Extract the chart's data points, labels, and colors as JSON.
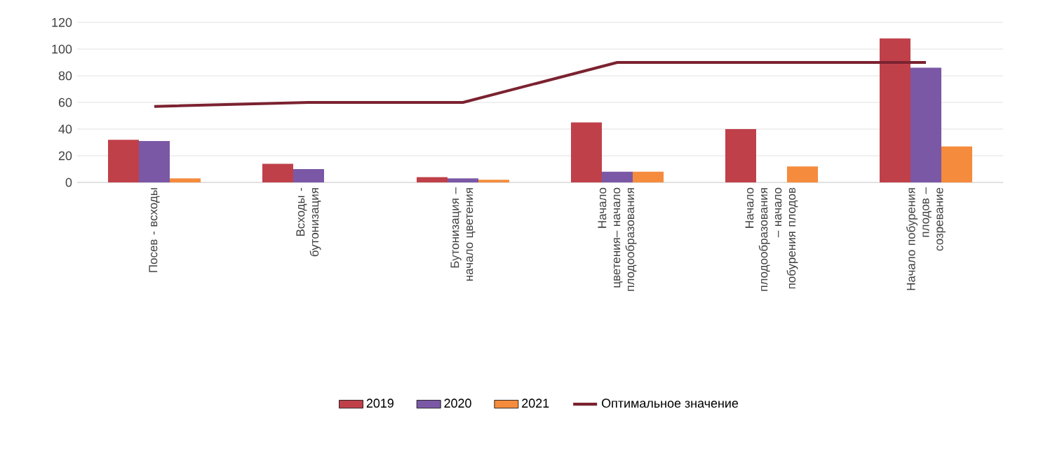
{
  "chart_data": {
    "type": "bar",
    "categories": [
      "Посев - всходы",
      "Всходы - бутонизация",
      "Бутонизация – начало цветения",
      "Начало цветения– начало плодообразования",
      "Начало плодообразования – начало побурения плодов",
      "Начало побурения плодов – созревание"
    ],
    "series": [
      {
        "name": "2019",
        "color": "#c0404a",
        "values": [
          32,
          14,
          4,
          45,
          40,
          108
        ]
      },
      {
        "name": "2020",
        "color": "#7b58a6",
        "values": [
          31,
          10,
          3,
          8,
          null,
          86
        ]
      },
      {
        "name": "2021",
        "color": "#f58b3c",
        "values": [
          3,
          null,
          2,
          8,
          12,
          27
        ]
      },
      {
        "name": "Оптимальное значение",
        "type": "line",
        "color": "#7b2230",
        "values": [
          57,
          60,
          60,
          90,
          90,
          90
        ]
      }
    ],
    "ylim": [
      0,
      120
    ],
    "yticks": [
      0,
      20,
      40,
      60,
      80,
      100,
      120
    ],
    "grid": "y",
    "legend": "bottom"
  }
}
